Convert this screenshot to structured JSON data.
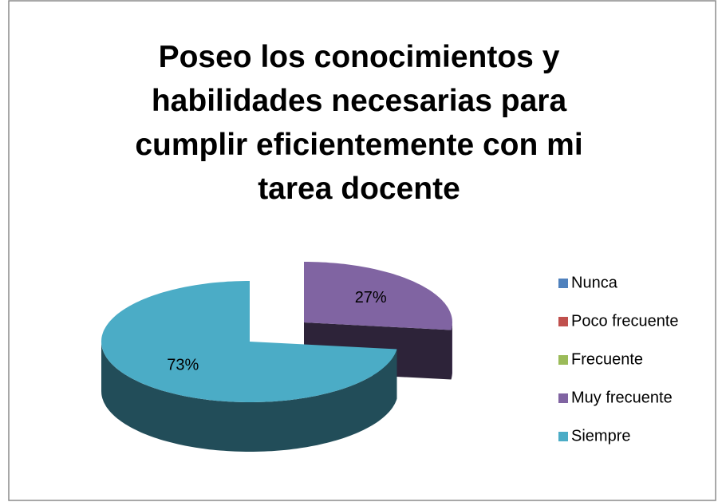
{
  "chart_data": {
    "type": "pie3d",
    "title": "Poseo los conocimientos y habilidades necesarias para cumplir eficientemente con mi tarea docente",
    "categories": [
      "Nunca",
      "Poco frecuente",
      "Frecuente",
      "Muy frecuente",
      "Siempre"
    ],
    "values": [
      0,
      0,
      0,
      27,
      73
    ],
    "value_labels": [
      null,
      null,
      null,
      "27%",
      "73%"
    ],
    "colors": [
      "#4F81BD",
      "#C0504D",
      "#9BBB59",
      "#8064A2",
      "#4BACC6"
    ],
    "legend": "right",
    "exploded": [
      3
    ]
  }
}
